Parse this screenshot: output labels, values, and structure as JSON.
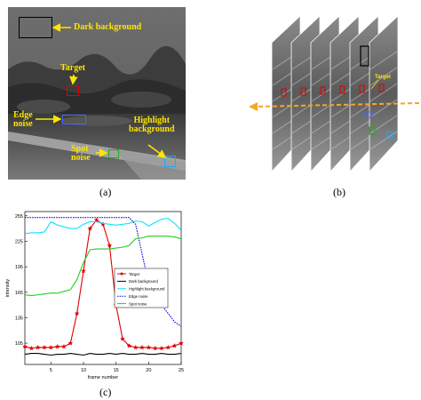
{
  "figure": {
    "panel_a": {
      "label": "(a)",
      "annotations": {
        "dark_background": "Dark background",
        "target": "Target",
        "edge_noise": "Edge\nnoise",
        "highlight_background": "Highlight\nbackground",
        "spot_noise": "Spot\nnoise"
      },
      "box_colors": {
        "dark_background": "#000000",
        "target": "#e00000",
        "edge_noise": "#4a63ff",
        "spot_noise": "#15b415",
        "highlight_background": "#19a9ff",
        "annotation": "#ffe600"
      }
    },
    "panel_b": {
      "label": "(b)",
      "target_label": "Target",
      "arrow_color": "#f5a623"
    },
    "panel_c": {
      "label": "(c)"
    }
  },
  "chart_data": {
    "type": "line",
    "title": "",
    "xlabel": "frame number",
    "ylabel": "intensity",
    "xlim": [
      1,
      25
    ],
    "ylim": [
      80,
      260
    ],
    "xticks": [
      5,
      10,
      15,
      20,
      25
    ],
    "yticks": [
      105,
      135,
      165,
      195,
      225,
      255
    ],
    "grid": false,
    "legend_position": "center-right",
    "x": [
      1,
      2,
      3,
      4,
      5,
      6,
      7,
      8,
      9,
      10,
      11,
      12,
      13,
      14,
      15,
      16,
      17,
      18,
      19,
      20,
      21,
      22,
      23,
      24,
      25
    ],
    "series": [
      {
        "name": "Target",
        "color": "#e00000",
        "marker": "star",
        "values": [
          101,
          99,
          100,
          100,
          100,
          101,
          101,
          105,
          140,
          190,
          240,
          250,
          245,
          220,
          150,
          110,
          102,
          100,
          100,
          100,
          99,
          99,
          100,
          102,
          105
        ]
      },
      {
        "name": "Dark background",
        "color": "#000000",
        "marker": "none",
        "values": [
          92,
          93,
          93,
          92,
          91,
          92,
          92,
          93,
          92,
          91,
          93,
          92,
          92,
          93,
          92,
          93,
          92,
          92,
          93,
          92,
          92,
          93,
          92,
          92,
          93
        ]
      },
      {
        "name": "Highlight background",
        "color": "#00e5ff",
        "marker": "none",
        "values": [
          234,
          235,
          235,
          236,
          248,
          244,
          242,
          240,
          240,
          245,
          248,
          248,
          246,
          245,
          244,
          245,
          246,
          249,
          248,
          243,
          247,
          251,
          252,
          246,
          238
        ]
      },
      {
        "name": "Edge noise",
        "color": "#0000dd",
        "marker": "dot",
        "values": [
          253,
          253,
          253,
          253,
          253,
          253,
          253,
          253,
          253,
          253,
          253,
          253,
          253,
          253,
          253,
          253,
          253,
          245,
          210,
          175,
          160,
          150,
          140,
          130,
          125
        ]
      },
      {
        "name": "Spot noise",
        "color": "#22cc22",
        "marker": "none",
        "values": [
          162,
          161,
          162,
          163,
          164,
          164,
          166,
          168,
          180,
          200,
          215,
          216,
          216,
          216,
          217,
          218,
          220,
          228,
          229,
          231,
          231,
          231,
          231,
          230,
          228
        ]
      }
    ]
  }
}
